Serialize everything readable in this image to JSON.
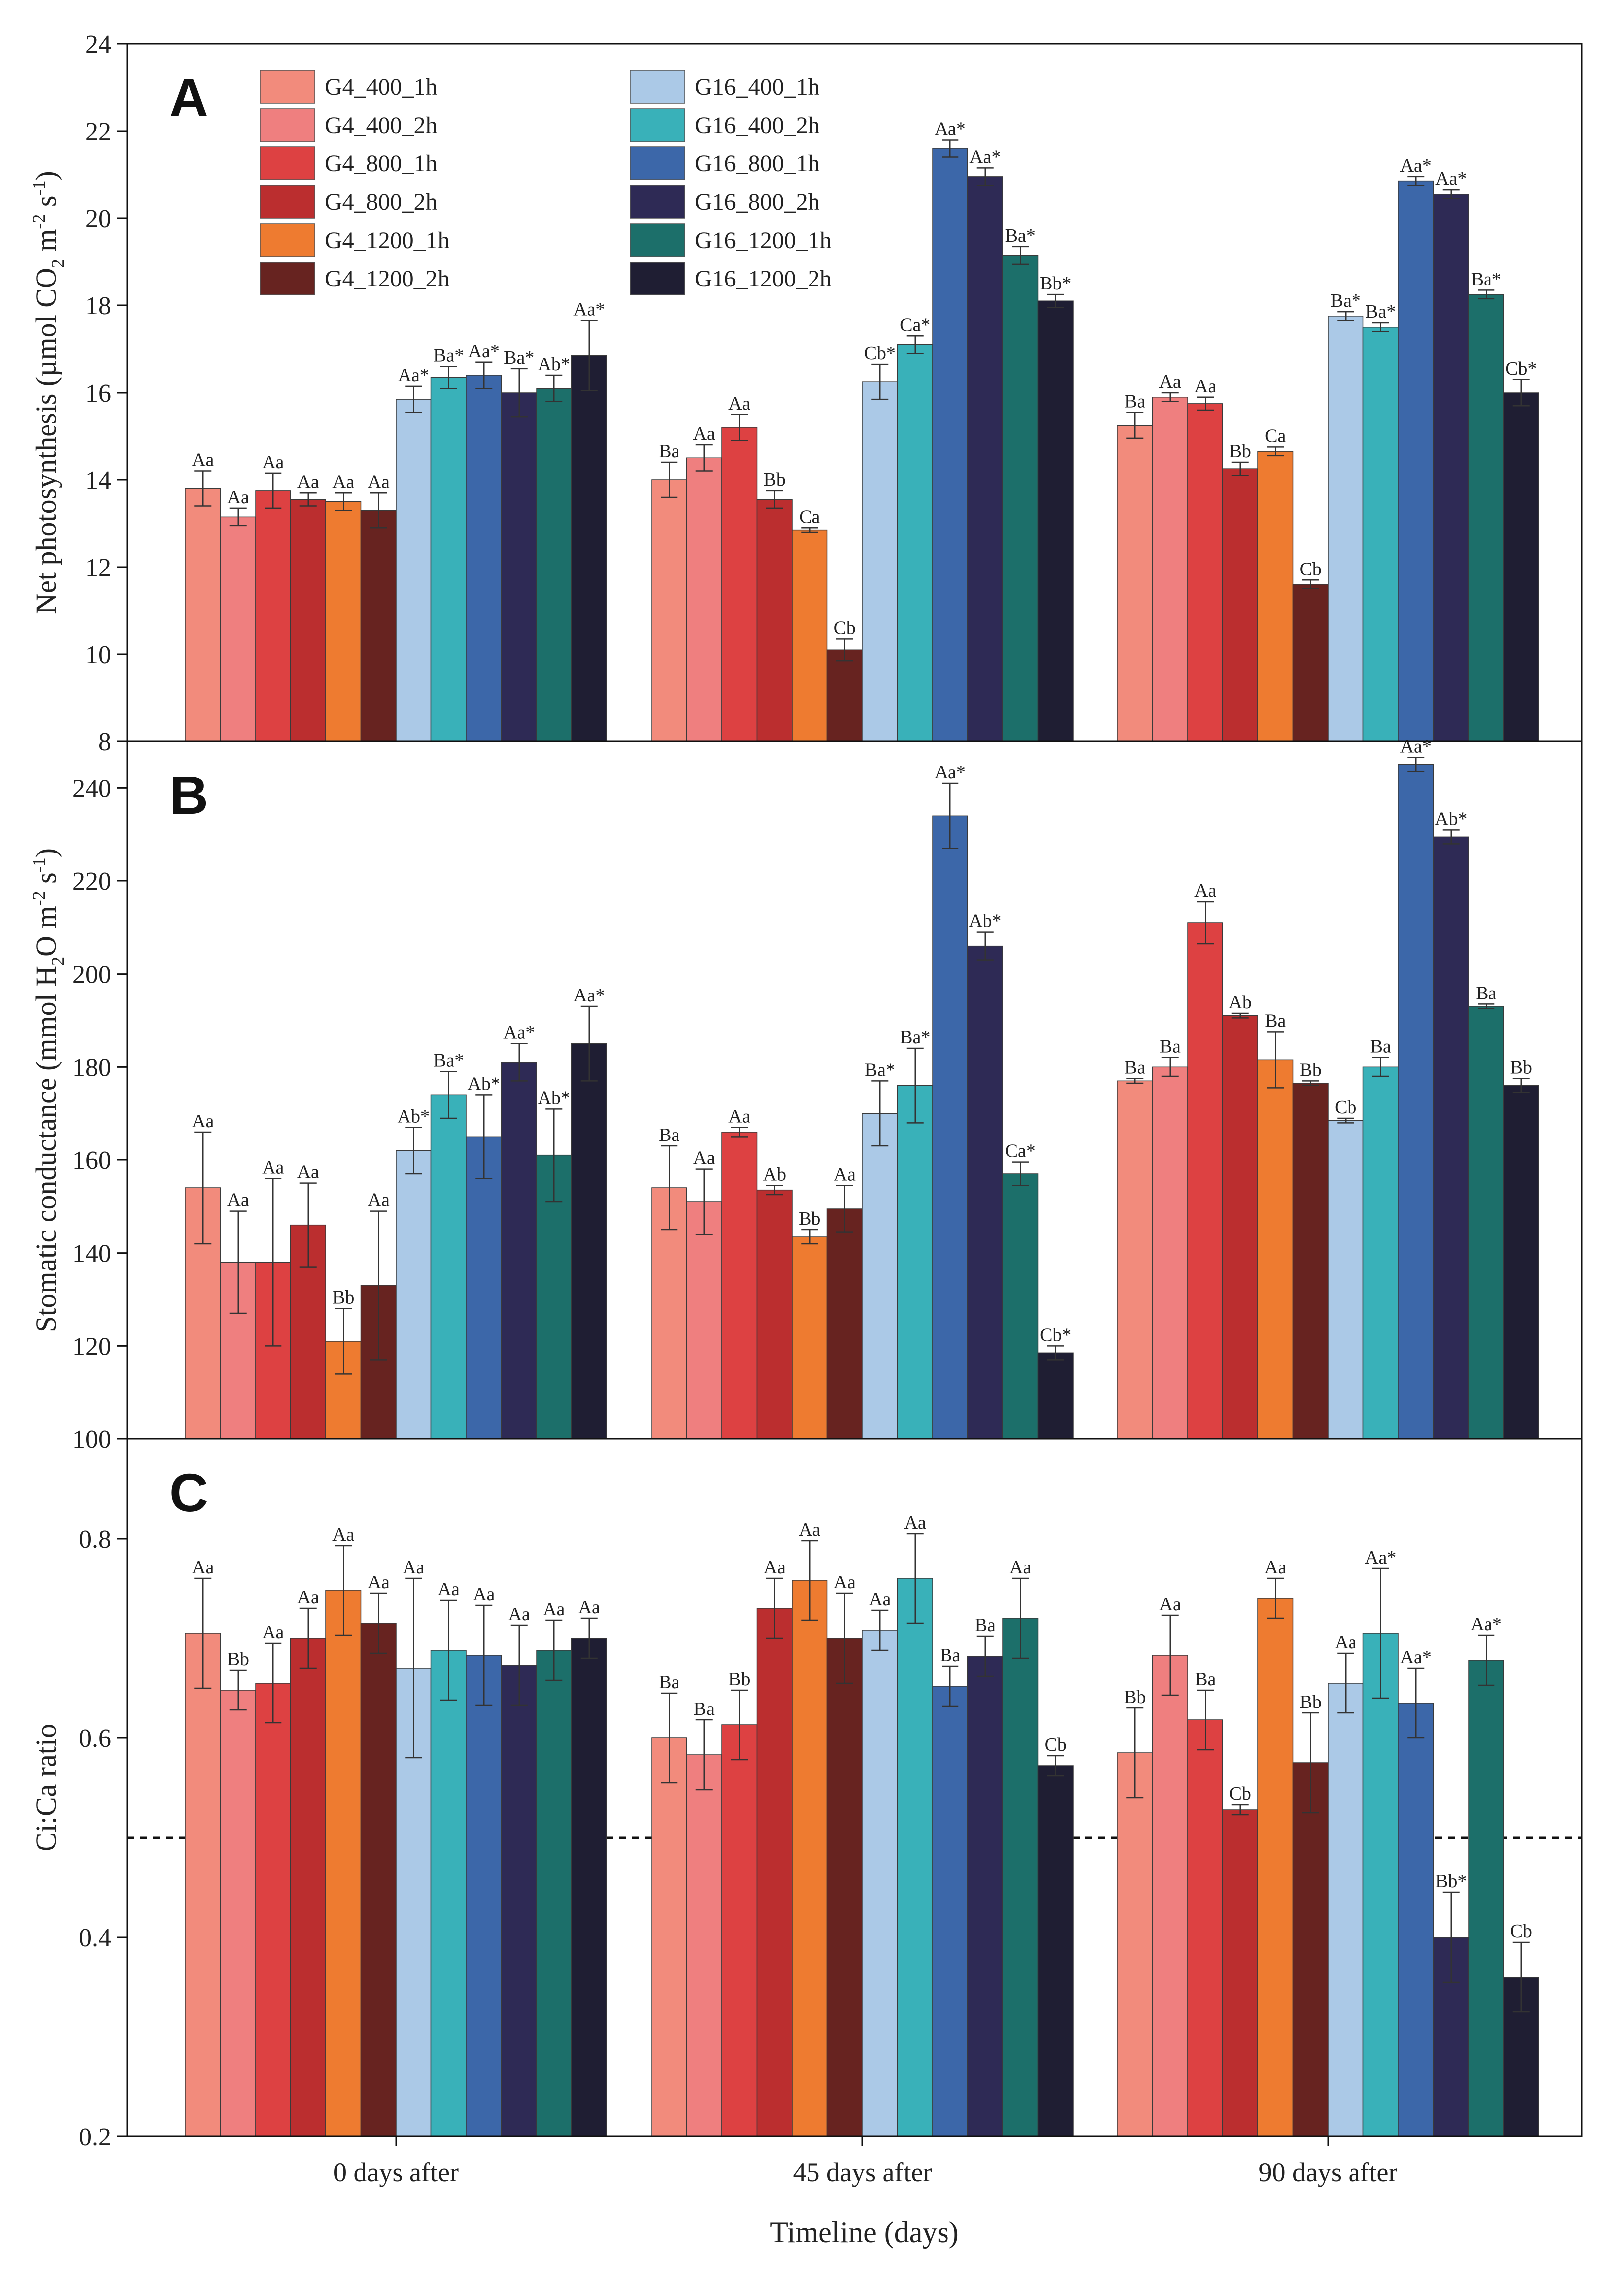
{
  "chart_data": {
    "type": "bar",
    "categories": [
      "0 days after",
      "45 days after",
      "90 days after"
    ],
    "xlabel": "Timeline (days)",
    "series_names": [
      "G4_400_1h",
      "G4_400_2h",
      "G4_800_1h",
      "G4_800_2h",
      "G4_1200_1h",
      "G4_1200_2h",
      "G16_400_1h",
      "G16_400_2h",
      "G16_800_1h",
      "G16_800_2h",
      "G16_1200_1h",
      "G16_1200_2h"
    ],
    "colors": [
      "#f28b7c",
      "#ef7f7f",
      "#dd4142",
      "#bb2e2f",
      "#ee7b30",
      "#672320",
      "#abc9e7",
      "#39b1b9",
      "#3c67a9",
      "#2e2a55",
      "#1c6f6a",
      "#1f1e33"
    ],
    "panels": [
      {
        "letter": "A",
        "ylabel_main": "Net photosynthesis (µmol CO",
        "ylabel_sub1": "2",
        "ylabel_mid": " m",
        "ylabel_sup1": "-2",
        "ylabel_mid2": " s",
        "ylabel_sup2": "-1",
        "ylabel_end": ")",
        "ylim": [
          8,
          24
        ],
        "yticks": [
          "8",
          "10",
          "12",
          "14",
          "16",
          "18",
          "20",
          "22",
          "24"
        ],
        "groups": [
          {
            "values": [
              13.8,
              13.15,
              13.75,
              13.55,
              13.5,
              13.3,
              15.85,
              16.35,
              16.4,
              16.0,
              16.1,
              16.85
            ],
            "errors": [
              0.4,
              0.2,
              0.4,
              0.15,
              0.2,
              0.4,
              0.3,
              0.25,
              0.3,
              0.55,
              0.3,
              0.8
            ],
            "labels": [
              "Aa",
              "Aa",
              "Aa",
              "Aa",
              "Aa",
              "Aa",
              "Aa*",
              "Ba*",
              "Aa*",
              "Ba*",
              "Ab*",
              "Aa*"
            ]
          },
          {
            "values": [
              14.0,
              14.5,
              15.2,
              13.55,
              12.85,
              10.1,
              16.25,
              17.1,
              21.6,
              20.95,
              19.15,
              18.1
            ],
            "errors": [
              0.4,
              0.3,
              0.3,
              0.2,
              0.05,
              0.25,
              0.4,
              0.2,
              0.2,
              0.2,
              0.2,
              0.15
            ],
            "labels": [
              "Ba",
              "Aa",
              "Aa",
              "Bb",
              "Ca",
              "Cb",
              "Cb*",
              "Ca*",
              "Aa*",
              "Aa*",
              "Ba*",
              "Bb*"
            ]
          },
          {
            "values": [
              15.25,
              15.9,
              15.75,
              14.25,
              14.65,
              11.6,
              17.75,
              17.5,
              20.85,
              20.55,
              18.25,
              16.0
            ],
            "errors": [
              0.3,
              0.1,
              0.15,
              0.15,
              0.1,
              0.1,
              0.1,
              0.1,
              0.1,
              0.1,
              0.1,
              0.3
            ],
            "labels": [
              "Ba",
              "Aa",
              "Aa",
              "Bb",
              "Ca",
              "Cb",
              "Ba*",
              "Ba*",
              "Aa*",
              "Aa*",
              "Ba*",
              "Cb*"
            ]
          }
        ]
      },
      {
        "letter": "B",
        "ylabel_main": "Stomatic conductance  (mmol H",
        "ylabel_sub1": "2",
        "ylabel_mid": "O m",
        "ylabel_sup1": "-2",
        "ylabel_mid2": " s",
        "ylabel_sup2": "-1",
        "ylabel_end": ")",
        "ylim": [
          100,
          250
        ],
        "yticks": [
          "100",
          "120",
          "140",
          "160",
          "180",
          "200",
          "220",
          "240"
        ],
        "groups": [
          {
            "values": [
              154,
              138,
              138,
              146,
              121,
              133,
              162,
              174,
              165,
              181,
              161,
              185
            ],
            "errors": [
              12,
              11,
              18,
              9,
              7,
              16,
              5,
              5,
              9,
              4,
              10,
              8
            ],
            "labels": [
              "Aa",
              "Aa",
              "Aa",
              "Aa",
              "Bb",
              "Aa",
              "Ab*",
              "Ba*",
              "Ab*",
              "Aa*",
              "Ab*",
              "Aa*"
            ]
          },
          {
            "values": [
              154,
              151,
              166,
              153.5,
              143.5,
              149.5,
              170,
              176,
              234,
              206,
              157,
              118.5
            ],
            "errors": [
              9,
              7,
              1,
              1,
              1.5,
              5,
              7,
              8,
              7,
              3,
              2.5,
              1.5
            ],
            "labels": [
              "Ba",
              "Aa",
              "Aa",
              "Ab",
              "Bb",
              "Aa",
              "Ba*",
              "Ba*",
              "Aa*",
              "Ab*",
              "Ca*",
              "Cb*"
            ]
          },
          {
            "values": [
              177,
              180,
              211,
              191,
              181.5,
              176.5,
              168.5,
              180,
              245,
              229.5,
              193,
              176
            ],
            "errors": [
              0.5,
              2,
              4.5,
              0.5,
              6,
              0.5,
              0.5,
              2,
              1.5,
              1.5,
              0.5,
              1.5
            ],
            "labels": [
              "Ba",
              "Ba",
              "Aa",
              "Ab",
              "Ba",
              "Bb",
              "Cb",
              "Ba",
              "Aa*",
              "Ab*",
              "Ba",
              "Bb"
            ]
          }
        ]
      },
      {
        "letter": "C",
        "ylabel_main": "Ci:Ca ratio",
        "ylabel_sub1": "",
        "ylabel_mid": "",
        "ylabel_sup1": "",
        "ylabel_mid2": "",
        "ylabel_sup2": "",
        "ylabel_end": "",
        "ylim": [
          0.2,
          0.9
        ],
        "yticks": [
          "0.2",
          "0.4",
          "0.6",
          "0.8"
        ],
        "reference_line": 0.5,
        "groups": [
          {
            "values": [
              0.705,
              0.648,
              0.655,
              0.7,
              0.748,
              0.715,
              0.67,
              0.688,
              0.683,
              0.673,
              0.688,
              0.7
            ],
            "errors": [
              0.055,
              0.02,
              0.04,
              0.03,
              0.045,
              0.03,
              0.09,
              0.05,
              0.05,
              0.04,
              0.03,
              0.02
            ],
            "labels": [
              "Aa",
              "Bb",
              "Aa",
              "Aa",
              "Aa",
              "Aa",
              "Aa",
              "Aa",
              "Aa",
              "Aa",
              "Aa",
              "Aa"
            ]
          },
          {
            "values": [
              0.6,
              0.583,
              0.613,
              0.73,
              0.758,
              0.7,
              0.708,
              0.76,
              0.652,
              0.682,
              0.72,
              0.572
            ],
            "errors": [
              0.045,
              0.035,
              0.035,
              0.03,
              0.04,
              0.045,
              0.02,
              0.045,
              0.02,
              0.02,
              0.04,
              0.01
            ],
            "labels": [
              "Ba",
              "Ba",
              "Bb",
              "Aa",
              "Aa",
              "Aa",
              "Aa",
              "Aa",
              "Ba",
              "Ba",
              "Aa",
              "Cb"
            ]
          },
          {
            "values": [
              0.585,
              0.683,
              0.618,
              0.528,
              0.74,
              0.575,
              0.655,
              0.705,
              0.635,
              0.4,
              0.678,
              0.36
            ],
            "errors": [
              0.045,
              0.04,
              0.03,
              0.005,
              0.02,
              0.05,
              0.03,
              0.065,
              0.035,
              0.045,
              0.025,
              0.035
            ],
            "labels": [
              "Bb",
              "Aa",
              "Ba",
              "Cb",
              "Aa",
              "Bb",
              "Aa",
              "Aa*",
              "Aa*",
              "Bb*",
              "Aa*",
              "Cb"
            ]
          }
        ]
      }
    ]
  }
}
